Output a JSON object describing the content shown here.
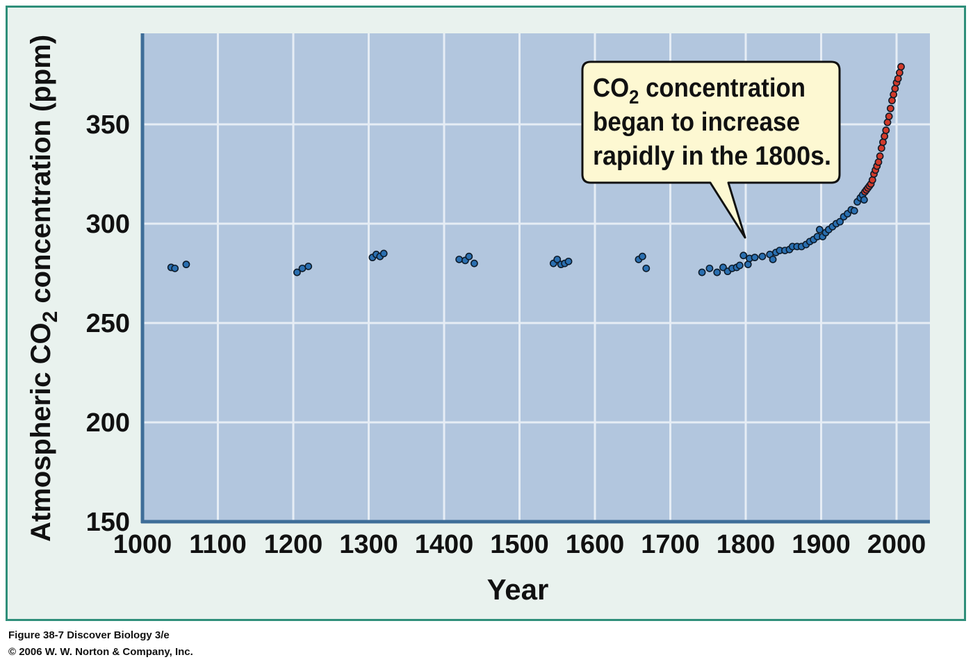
{
  "caption": {
    "line1": "Figure 38-7  Discover Biology 3/e",
    "line2": "© 2006 W. W. Norton & Company, Inc."
  },
  "colors": {
    "frame": "#2f8f7a",
    "frame_fill": "#e9f2ee",
    "plot_bg": "#b2c6de",
    "grid": "#e6edf5",
    "axis": "#3e6d98",
    "point_pre_1958": "#2a6fb0",
    "point_recent": "#d23a2a",
    "callout_fill": "#fdf8d2"
  },
  "chart_data": {
    "type": "scatter",
    "xlabel": "Year",
    "ylabel": "Atmospheric CO2 concentration (ppm)",
    "ylabel_parts": {
      "before": "Atmospheric CO",
      "subscript": "2",
      "after": " concentration (ppm)"
    },
    "xlim": [
      1000,
      2050
    ],
    "ylim": [
      150,
      395
    ],
    "x_ticks": [
      1000,
      1100,
      1200,
      1300,
      1400,
      1500,
      1600,
      1700,
      1800,
      1900,
      2000
    ],
    "y_ticks": [
      150,
      200,
      250,
      300,
      350
    ],
    "grid": true,
    "annotation": {
      "line1_before": "CO",
      "line1_sub": "2",
      "line1_after": " concentration",
      "line2": "began to increase",
      "line3": "rapidly in the 1800s.",
      "points_to": {
        "x": 1800,
        "y": 286
      }
    },
    "series": [
      {
        "color": "#2a6fb0",
        "points": [
          [
            1038,
            278
          ],
          [
            1043,
            277.5
          ],
          [
            1058,
            279.5
          ],
          [
            1205,
            275.5
          ],
          [
            1212,
            277.5
          ],
          [
            1220,
            278.5
          ],
          [
            1305,
            283
          ],
          [
            1310,
            284.5
          ],
          [
            1315,
            283.5
          ],
          [
            1320,
            285
          ],
          [
            1420,
            282
          ],
          [
            1428,
            281.5
          ],
          [
            1433,
            283.5
          ],
          [
            1440,
            280
          ],
          [
            1545,
            280
          ],
          [
            1550,
            282
          ],
          [
            1555,
            279.5
          ],
          [
            1560,
            280
          ],
          [
            1565,
            281
          ],
          [
            1658,
            282
          ],
          [
            1663,
            283.5
          ],
          [
            1668,
            277.5
          ],
          [
            1742,
            275.5
          ],
          [
            1752,
            277.5
          ],
          [
            1762,
            275.5
          ],
          [
            1770,
            278
          ],
          [
            1776,
            276
          ],
          [
            1782,
            277.5
          ],
          [
            1788,
            278
          ],
          [
            1792,
            279
          ],
          [
            1797,
            284
          ],
          [
            1803,
            279.5
          ],
          [
            1805,
            282.5
          ],
          [
            1812,
            283
          ],
          [
            1822,
            283.5
          ],
          [
            1832,
            284.5
          ],
          [
            1836,
            282
          ],
          [
            1840,
            285.5
          ],
          [
            1845,
            286.5
          ],
          [
            1852,
            286.5
          ],
          [
            1858,
            287
          ],
          [
            1862,
            288.5
          ],
          [
            1868,
            288.5
          ],
          [
            1874,
            288.5
          ],
          [
            1880,
            289.5
          ],
          [
            1885,
            291
          ],
          [
            1890,
            292
          ],
          [
            1895,
            293.5
          ],
          [
            1898,
            297
          ],
          [
            1902,
            293.5
          ],
          [
            1906,
            295.5
          ],
          [
            1910,
            297
          ],
          [
            1915,
            298.5
          ],
          [
            1920,
            300
          ],
          [
            1925,
            301
          ],
          [
            1930,
            303.5
          ],
          [
            1935,
            305
          ],
          [
            1940,
            307
          ],
          [
            1944,
            306.5
          ],
          [
            1948,
            311
          ],
          [
            1952,
            313
          ],
          [
            1955,
            314.5
          ],
          [
            1957,
            312
          ]
        ]
      },
      {
        "color": "#d23a2a",
        "points": [
          [
            1958,
            316
          ],
          [
            1960,
            317
          ],
          [
            1962,
            318
          ],
          [
            1964,
            319
          ],
          [
            1966,
            320
          ],
          [
            1968,
            322
          ],
          [
            1970,
            325
          ],
          [
            1972,
            327
          ],
          [
            1974,
            329
          ],
          [
            1976,
            331
          ],
          [
            1978,
            334
          ],
          [
            1980,
            338
          ],
          [
            1982,
            341
          ],
          [
            1984,
            344
          ],
          [
            1986,
            347
          ],
          [
            1988,
            351
          ],
          [
            1990,
            354
          ],
          [
            1992,
            358
          ],
          [
            1994,
            362
          ],
          [
            1996,
            365
          ],
          [
            1998,
            368
          ],
          [
            2000,
            371
          ],
          [
            2002,
            373
          ],
          [
            2004,
            376
          ],
          [
            2006,
            379
          ]
        ]
      }
    ]
  }
}
